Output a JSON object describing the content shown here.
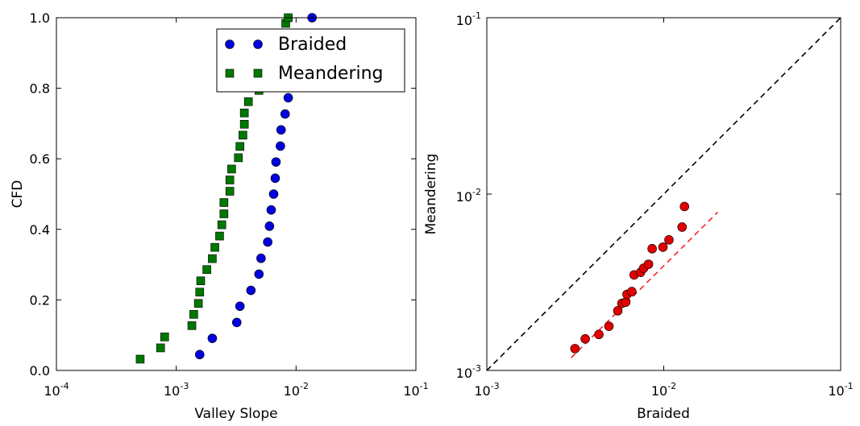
{
  "chart_data": [
    {
      "type": "scatter",
      "xlabel": "Valley Slope",
      "ylabel": "CFD",
      "xscale": "log",
      "xlim": [
        0.0001,
        0.1
      ],
      "ylim": [
        0,
        1.0
      ],
      "x_ticks": [
        {
          "value": 0.0001,
          "base": "10",
          "exp": "-4"
        },
        {
          "value": 0.001,
          "base": "10",
          "exp": "-3"
        },
        {
          "value": 0.01,
          "base": "10",
          "exp": "-2"
        },
        {
          "value": 0.1,
          "base": "10",
          "exp": "-1"
        }
      ],
      "y_ticks": [
        "0.0",
        "0.2",
        "0.4",
        "0.6",
        "0.8",
        "1.0"
      ],
      "grid": false,
      "legend": "top-right",
      "series": [
        {
          "name": "Braided",
          "marker": "circle",
          "color": "#0000dd",
          "points": [
            [
              0.00157,
              0.045
            ],
            [
              0.002,
              0.091
            ],
            [
              0.0032,
              0.136
            ],
            [
              0.0034,
              0.182
            ],
            [
              0.0042,
              0.227
            ],
            [
              0.0049,
              0.273
            ],
            [
              0.0051,
              0.318
            ],
            [
              0.0058,
              0.364
            ],
            [
              0.006,
              0.409
            ],
            [
              0.0062,
              0.455
            ],
            [
              0.0065,
              0.5
            ],
            [
              0.0067,
              0.545
            ],
            [
              0.0068,
              0.591
            ],
            [
              0.0074,
              0.636
            ],
            [
              0.0075,
              0.682
            ],
            [
              0.0081,
              0.727
            ],
            [
              0.0086,
              0.773
            ],
            [
              0.0136,
              1.0
            ]
          ]
        },
        {
          "name": "Meandering",
          "marker": "square",
          "color": "#007700",
          "points": [
            [
              0.0005,
              0.032
            ],
            [
              0.00074,
              0.064
            ],
            [
              0.0008,
              0.095
            ],
            [
              0.00135,
              0.127
            ],
            [
              0.0014,
              0.159
            ],
            [
              0.00153,
              0.19
            ],
            [
              0.00157,
              0.222
            ],
            [
              0.0016,
              0.254
            ],
            [
              0.0018,
              0.286
            ],
            [
              0.002,
              0.317
            ],
            [
              0.0021,
              0.349
            ],
            [
              0.0023,
              0.381
            ],
            [
              0.0024,
              0.413
            ],
            [
              0.0025,
              0.444
            ],
            [
              0.0025,
              0.476
            ],
            [
              0.0028,
              0.508
            ],
            [
              0.0028,
              0.54
            ],
            [
              0.0029,
              0.571
            ],
            [
              0.0033,
              0.603
            ],
            [
              0.0034,
              0.635
            ],
            [
              0.0036,
              0.667
            ],
            [
              0.0037,
              0.698
            ],
            [
              0.0037,
              0.73
            ],
            [
              0.004,
              0.762
            ],
            [
              0.0049,
              0.794
            ],
            [
              0.0061,
              0.825
            ],
            [
              0.0071,
              0.857
            ],
            [
              0.0075,
              0.889
            ],
            [
              0.0078,
              0.921
            ],
            [
              0.0078,
              0.952
            ],
            [
              0.0082,
              0.984
            ],
            [
              0.0086,
              1.0
            ]
          ]
        }
      ]
    },
    {
      "type": "scatter",
      "xlabel": "Braided",
      "ylabel": "Meandering",
      "xscale": "log",
      "yscale": "log",
      "xlim": [
        0.001,
        0.1
      ],
      "ylim": [
        0.001,
        0.1
      ],
      "x_ticks": [
        {
          "value": 0.001,
          "base": "10",
          "exp": "-3"
        },
        {
          "value": 0.01,
          "base": "10",
          "exp": "-2"
        },
        {
          "value": 0.1,
          "base": "10",
          "exp": "-1"
        }
      ],
      "y_ticks": [
        {
          "value": 0.001,
          "base": "10",
          "exp": "-3"
        },
        {
          "value": 0.01,
          "base": "10",
          "exp": "-2"
        },
        {
          "value": 0.1,
          "base": "10",
          "exp": "-1"
        }
      ],
      "grid": false,
      "series": [
        {
          "marker": "circle",
          "color": "#e00000",
          "points": [
            [
              0.00315,
              0.00133
            ],
            [
              0.0036,
              0.00151
            ],
            [
              0.0043,
              0.0016
            ],
            [
              0.0049,
              0.00178
            ],
            [
              0.0055,
              0.00218
            ],
            [
              0.0058,
              0.0024
            ],
            [
              0.0061,
              0.00244
            ],
            [
              0.0062,
              0.0027
            ],
            [
              0.0066,
              0.0028
            ],
            [
              0.0068,
              0.00348
            ],
            [
              0.0074,
              0.0036
            ],
            [
              0.0077,
              0.0038
            ],
            [
              0.0082,
              0.004
            ],
            [
              0.0086,
              0.0049
            ],
            [
              0.0099,
              0.005
            ],
            [
              0.0107,
              0.0055
            ],
            [
              0.0127,
              0.0065
            ],
            [
              0.0131,
              0.0085
            ]
          ]
        }
      ],
      "reference_lines": [
        {
          "style": "dashed",
          "color": "#000000",
          "points": [
            [
              0.001,
              0.001
            ],
            [
              0.1,
              0.1
            ]
          ]
        },
        {
          "style": "dashed",
          "color": "#ff2222",
          "points": [
            [
              0.003,
              0.00118
            ],
            [
              0.0202,
              0.0079
            ]
          ]
        }
      ]
    }
  ]
}
